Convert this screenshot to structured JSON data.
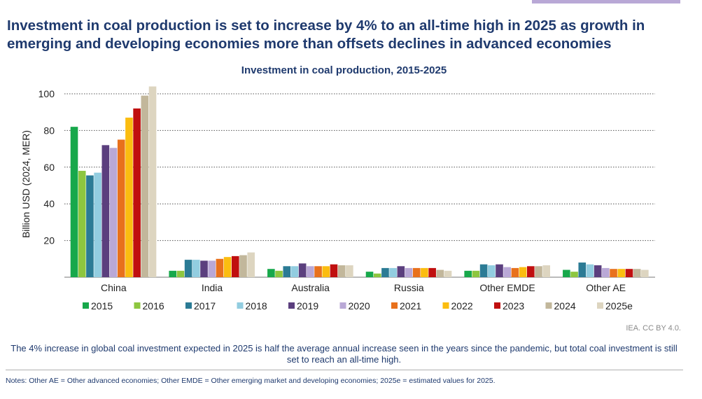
{
  "headline": "Investment in coal production is set to increase by 4% to an all-time high in 2025 as growth in emerging and developing economies more than offsets declines in advanced economies",
  "credit": "IEA. CC BY 4.0.",
  "caption": "The 4% increase in global coal investment expected in 2025 is half the average annual increase seen in the years since the pandemic, but total coal investment is still set to reach an all-time high.",
  "notes": "Notes: Other AE = Other advanced economies; Other EMDE = Other emerging market and developing economies; 2025e = estimated values for 2025.",
  "chart_data": {
    "type": "bar",
    "title": "Investment in coal production, 2015-2025",
    "ylabel": "Billion USD (2024, MER)",
    "xlabel": "",
    "ylim": [
      0,
      100
    ],
    "yticks": [
      20,
      40,
      60,
      80,
      100
    ],
    "grid": true,
    "legend_position": "bottom",
    "categories": [
      "China",
      "India",
      "Australia",
      "Russia",
      "Other EMDE",
      "Other AE"
    ],
    "series": [
      {
        "name": "2015",
        "color": "#17a84b",
        "values": [
          82,
          3.5,
          4.5,
          3.0,
          3.5,
          4.0
        ]
      },
      {
        "name": "2016",
        "color": "#8dc63f",
        "values": [
          58,
          3.5,
          3.5,
          2.0,
          3.5,
          3.0
        ]
      },
      {
        "name": "2017",
        "color": "#2b7b95",
        "values": [
          55.5,
          9.5,
          6.0,
          5.0,
          7.0,
          8.0
        ]
      },
      {
        "name": "2018",
        "color": "#92cde0",
        "values": [
          57,
          9.5,
          6.0,
          5.0,
          6.5,
          7.0
        ]
      },
      {
        "name": "2019",
        "color": "#5b3f7e",
        "values": [
          72,
          9.0,
          7.5,
          6.0,
          7.0,
          6.5
        ]
      },
      {
        "name": "2020",
        "color": "#b9a8d6",
        "values": [
          70.5,
          9.0,
          6.0,
          5.0,
          5.5,
          5.0
        ]
      },
      {
        "name": "2021",
        "color": "#e8711c",
        "values": [
          75,
          10.0,
          6.0,
          5.0,
          5.0,
          4.5
        ]
      },
      {
        "name": "2022",
        "color": "#fbbd10",
        "values": [
          87,
          11.0,
          6.0,
          5.0,
          5.5,
          4.5
        ]
      },
      {
        "name": "2023",
        "color": "#c00f0f",
        "values": [
          92,
          11.5,
          7.0,
          5.0,
          6.0,
          4.5
        ]
      },
      {
        "name": "2024",
        "color": "#c2b79b",
        "values": [
          99,
          12.0,
          6.5,
          4.0,
          6.0,
          4.5
        ]
      },
      {
        "name": "2025e",
        "color": "#ddd5c0",
        "values": [
          104,
          13.5,
          6.5,
          3.5,
          6.5,
          4.0
        ]
      }
    ]
  }
}
